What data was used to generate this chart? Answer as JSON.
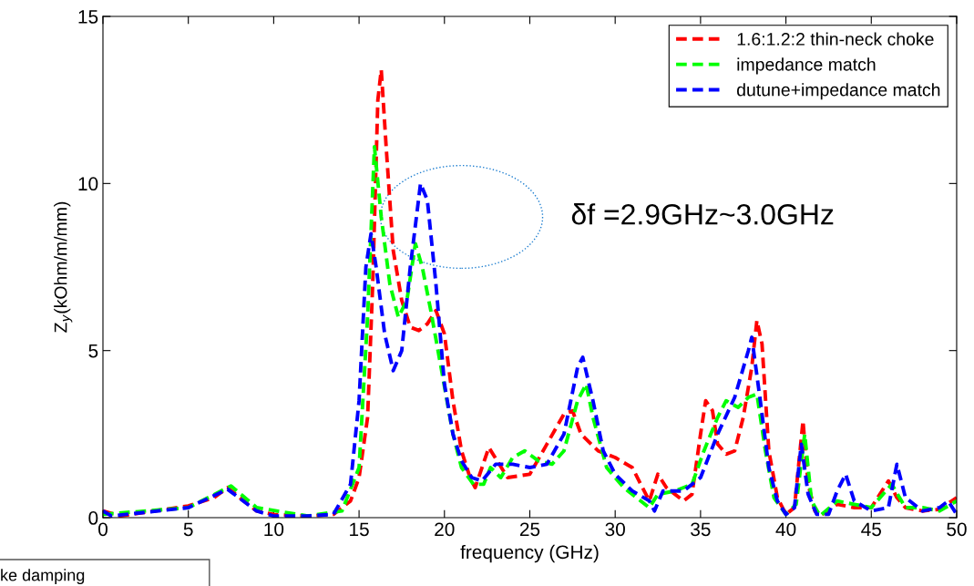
{
  "chart_data": {
    "type": "line",
    "xlabel": "frequency (GHz)",
    "ylabel": "Z$_{y}$(kOhm/m/mm)",
    "xlim": [
      0,
      50
    ],
    "ylim": [
      0,
      15
    ],
    "xticks": [
      0,
      5,
      10,
      15,
      20,
      25,
      30,
      35,
      40,
      45,
      50
    ],
    "yticks": [
      0,
      5,
      10,
      15
    ],
    "grid": false,
    "legend": "top right",
    "line_style": "dashed",
    "marker": "none",
    "annotations": [
      "δf =2.9GHz~3.0GHz",
      "ke damping"
    ],
    "series": [
      {
        "name": "1.6:1.2:2 thin-neck choke",
        "color": "#ff0000",
        "x": [
          0,
          1,
          5,
          6.5,
          7.3,
          8,
          9,
          10,
          12,
          13.5,
          14.5,
          15,
          15.5,
          15.8,
          16.1,
          16.3,
          16.6,
          17.0,
          17.5,
          18,
          18.5,
          19,
          19.5,
          20,
          20.5,
          21,
          21.5,
          21.8,
          22.6,
          23.7,
          25,
          26,
          27,
          27.5,
          28,
          29,
          30,
          31,
          31.5,
          32,
          32.5,
          33,
          34,
          34.5,
          35,
          35.3,
          35.7,
          36,
          36.5,
          37,
          37.5,
          38,
          38.3,
          38.6,
          39,
          39.5,
          40,
          40.5,
          41,
          41.3,
          41.7,
          42,
          43,
          44,
          45,
          46,
          46.5,
          47,
          48,
          49,
          50
        ],
        "values": [
          0.2,
          0.05,
          0.35,
          0.6,
          0.9,
          0.6,
          0.2,
          0.1,
          0.05,
          0.1,
          0.5,
          1.2,
          3,
          7,
          12.5,
          13.4,
          11,
          8,
          6.5,
          5.7,
          5.6,
          5.8,
          6.2,
          5.5,
          3.5,
          2,
          1.2,
          0.9,
          2.1,
          1.2,
          1.3,
          2.2,
          3.1,
          3.2,
          2.5,
          2.0,
          1.8,
          1.5,
          1.0,
          0.5,
          1.3,
          0.9,
          0.5,
          0.7,
          2.5,
          3.5,
          3.2,
          2.2,
          1.9,
          2.0,
          3.0,
          4.5,
          5.9,
          5.2,
          2.0,
          0.6,
          0.1,
          0.3,
          2.9,
          1.0,
          0.2,
          0.05,
          0.4,
          0.3,
          0.3,
          1.1,
          0.6,
          0.3,
          0.2,
          0.25,
          0.6
        ]
      },
      {
        "name": "impedance match",
        "color": "#00ff00",
        "x": [
          0,
          5,
          7.5,
          9,
          12,
          14,
          15,
          15.5,
          15.9,
          16.3,
          16.8,
          17.3,
          17.8,
          18.3,
          18.7,
          19.2,
          19.8,
          20.5,
          21,
          21.7,
          22.3,
          22.7,
          23.3,
          24,
          24.7,
          25.5,
          26.3,
          27,
          27.8,
          28.3,
          28.7,
          29.5,
          30.5,
          31.5,
          32,
          32.5,
          33.5,
          34.5,
          35.2,
          36,
          36.5,
          37.2,
          37.8,
          38.3,
          38.8,
          39.3,
          40,
          40.6,
          41.1,
          41.5,
          42,
          43,
          44,
          45,
          46.2,
          47,
          48,
          49,
          50
        ],
        "values": [
          0.1,
          0.3,
          0.95,
          0.3,
          0.05,
          0.2,
          1.5,
          6,
          11.1,
          9,
          7,
          6.0,
          6.5,
          8.2,
          7.5,
          6.2,
          4.5,
          2.5,
          1.5,
          1.0,
          1.0,
          1.5,
          1.2,
          1.8,
          2.0,
          1.7,
          1.6,
          2.0,
          3.5,
          4.0,
          3.0,
          1.5,
          0.9,
          0.5,
          0.3,
          0.7,
          0.8,
          1.0,
          2.0,
          3.0,
          3.5,
          3.3,
          3.6,
          3.7,
          2,
          0.6,
          0.1,
          0.4,
          2.5,
          0.5,
          0.05,
          0.5,
          0.4,
          0.3,
          1.0,
          0.3,
          0.3,
          0.2,
          0.5
        ]
      },
      {
        "name": "dutune+impedance match",
        "color": "#0000ff",
        "x": [
          0,
          0.5,
          5,
          7.3,
          9,
          10,
          12,
          13.5,
          14.5,
          15,
          15.4,
          15.7,
          16.0,
          16.5,
          17.0,
          17.5,
          18.0,
          18.6,
          19.0,
          19.5,
          20,
          20.5,
          21,
          21.6,
          22.2,
          23,
          24,
          25,
          26,
          27,
          27.8,
          28.1,
          28.7,
          29.3,
          30,
          31,
          32,
          32.3,
          32.8,
          34,
          35,
          36,
          37,
          37.8,
          38.0,
          38.5,
          39,
          39.5,
          40,
          40.5,
          40.9,
          41.3,
          41.8,
          42.5,
          43,
          43.5,
          44,
          45,
          46,
          46.5,
          47,
          48,
          49,
          49.5,
          50
        ],
        "values": [
          0.2,
          0.05,
          0.3,
          0.85,
          0.2,
          0.05,
          0.05,
          0.1,
          1.0,
          3.5,
          7.5,
          8.5,
          7.5,
          5.5,
          4.4,
          5.0,
          7.5,
          10.0,
          9.5,
          7.0,
          4.0,
          2.5,
          1.7,
          1.2,
          1.1,
          1.6,
          1.6,
          1.5,
          1.6,
          2.5,
          4.5,
          4.8,
          3.5,
          2.0,
          1.3,
          0.8,
          0.5,
          0.2,
          0.8,
          0.8,
          1.2,
          2.5,
          3.6,
          5.0,
          5.4,
          3.5,
          1.5,
          0.5,
          0.1,
          0.3,
          2.2,
          0.7,
          0.1,
          0.1,
          0.8,
          1.3,
          0.5,
          0.2,
          0.3,
          1.6,
          0.6,
          0.2,
          0.3,
          0.5,
          0.1
        ]
      }
    ]
  }
}
